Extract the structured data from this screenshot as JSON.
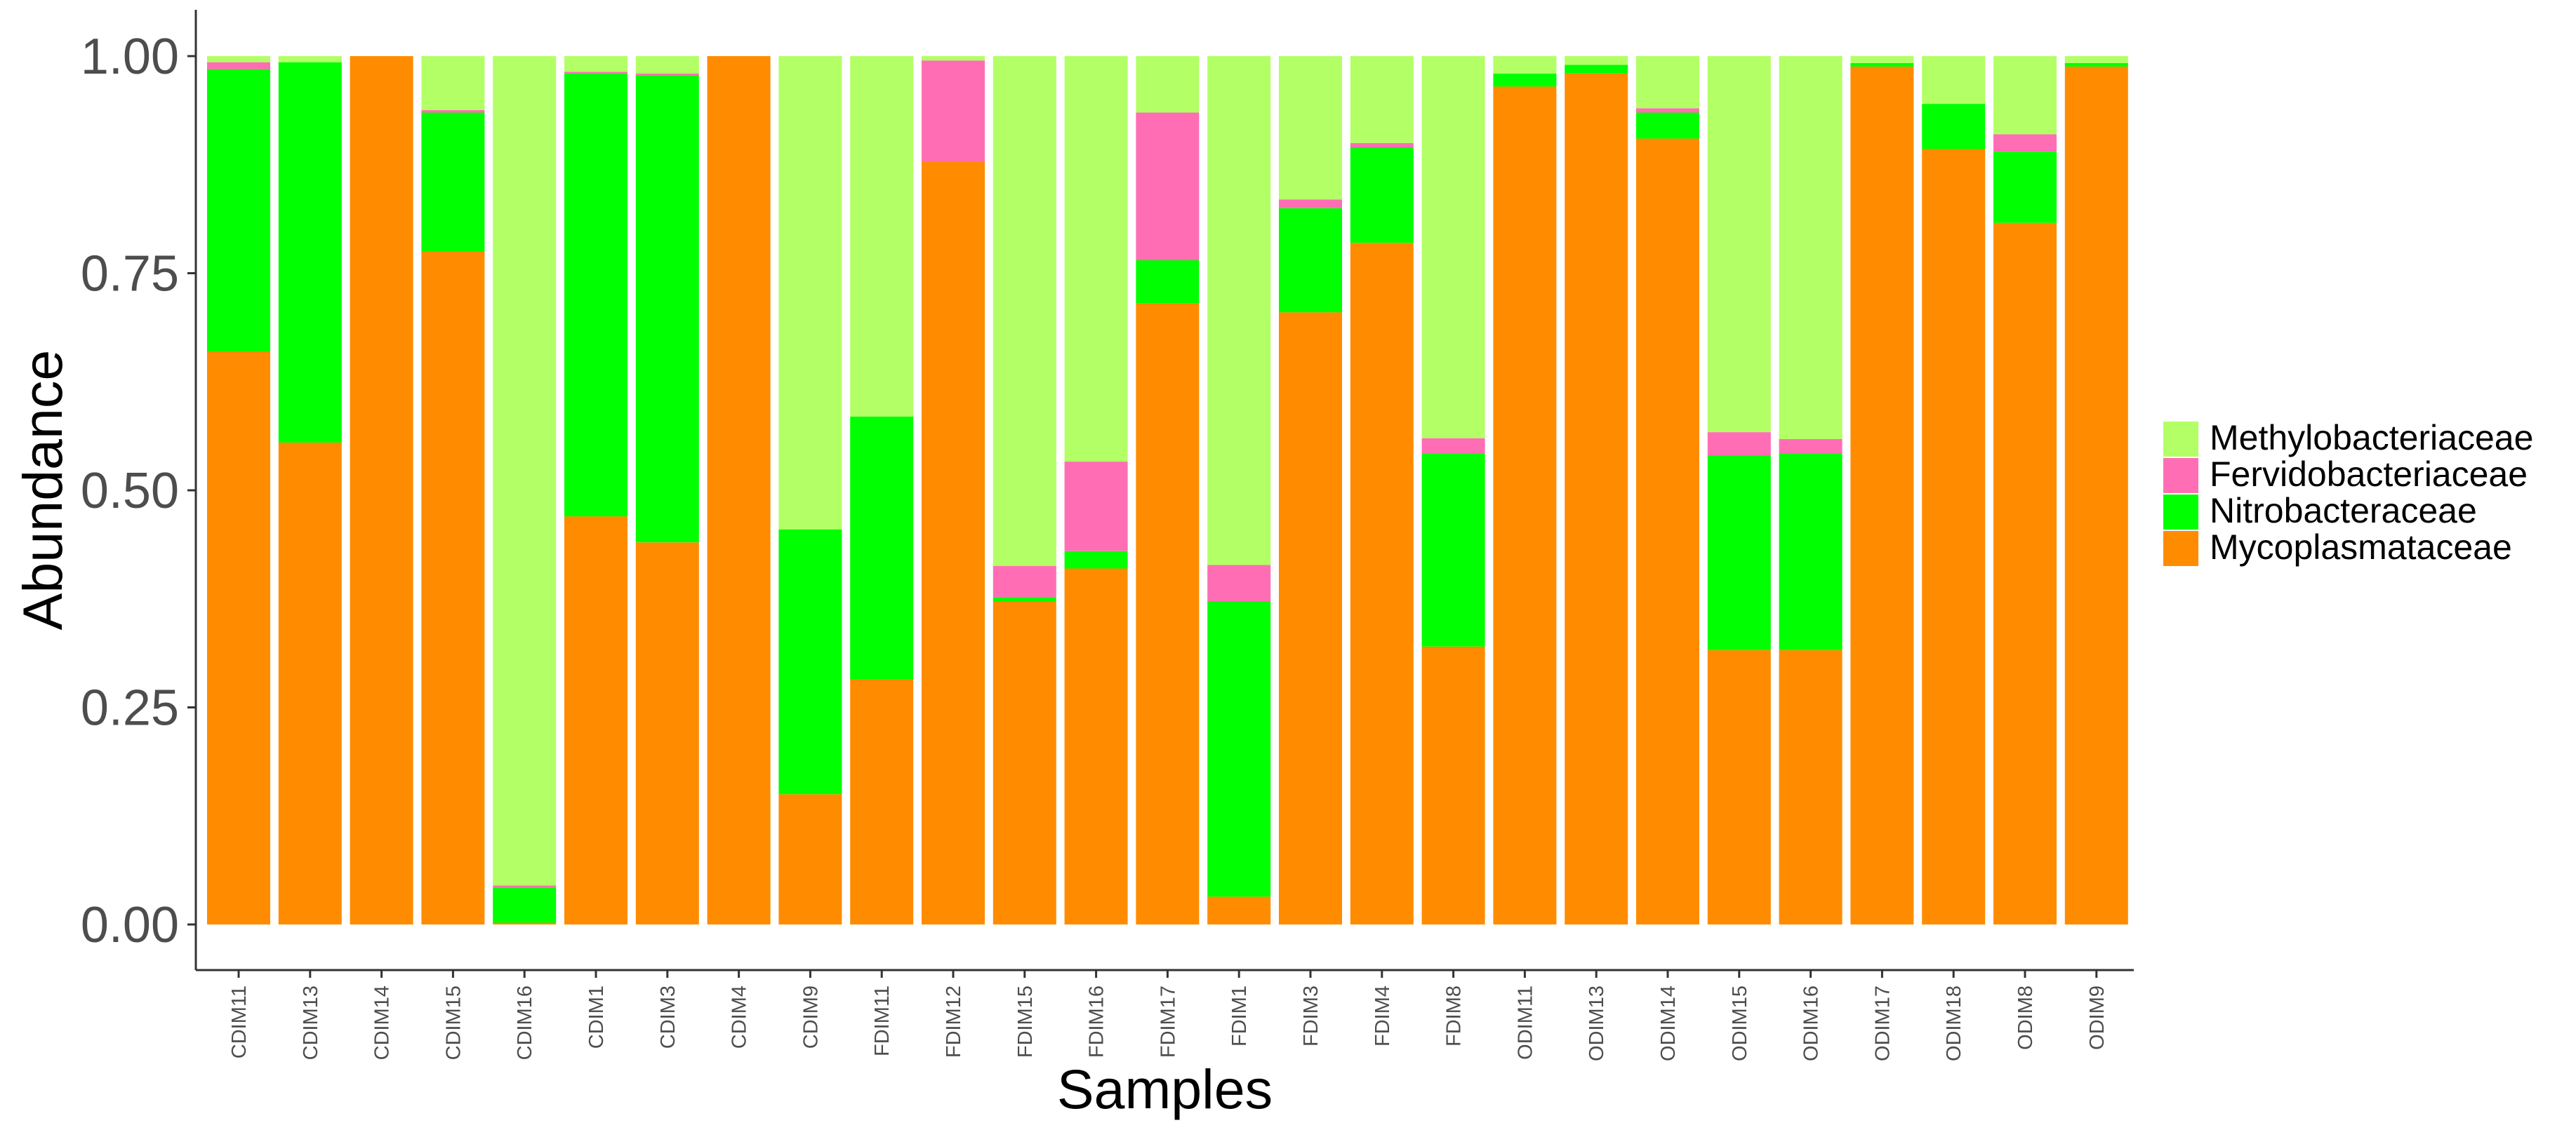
{
  "chart_data": {
    "type": "bar",
    "stacked": true,
    "title": "",
    "xlabel": "Samples",
    "ylabel": "Abundance",
    "ylim": [
      0,
      1.05
    ],
    "yticks": [
      0.0,
      0.25,
      0.5,
      0.75,
      1.0
    ],
    "ytick_labels": [
      "0.00",
      "0.25",
      "0.50",
      "0.75",
      "1.00"
    ],
    "grid": false,
    "legend_position": "right",
    "categories": [
      "CDIM11",
      "CDIM13",
      "CDIM14",
      "CDIM15",
      "CDIM16",
      "CDIM1",
      "CDIM3",
      "CDIM4",
      "CDIM9",
      "FDIM11",
      "FDIM12",
      "FDIM15",
      "FDIM16",
      "FDIM17",
      "FDIM1",
      "FDIM3",
      "FDIM4",
      "FDIM8",
      "ODIM11",
      "ODIM13",
      "ODIM14",
      "ODIM15",
      "ODIM16",
      "ODIM17",
      "ODIM18",
      "ODIM8",
      "ODIM9"
    ],
    "series": [
      {
        "name": "Mycoplasmataceae",
        "color": "#FF8C00",
        "values": [
          0.66,
          0.555,
          1.0,
          0.775,
          0.002,
          0.47,
          0.44,
          1.0,
          0.15,
          0.282,
          0.878,
          0.372,
          0.41,
          0.715,
          0.032,
          0.705,
          0.785,
          0.32,
          0.965,
          0.98,
          0.905,
          0.316,
          0.316,
          0.988,
          0.893,
          0.808,
          0.988
        ]
      },
      {
        "name": "Nitrobacteraceae",
        "color": "#00FF00",
        "values": [
          0.325,
          0.438,
          0.0,
          0.16,
          0.04,
          0.51,
          0.538,
          0.0,
          0.305,
          0.303,
          0.0,
          0.005,
          0.02,
          0.05,
          0.34,
          0.12,
          0.11,
          0.222,
          0.015,
          0.01,
          0.03,
          0.224,
          0.226,
          0.004,
          0.052,
          0.082,
          0.004
        ]
      },
      {
        "name": "Fervidobacteriaceae",
        "color": "#FF6EB4",
        "values": [
          0.008,
          0.0,
          0.0,
          0.003,
          0.003,
          0.002,
          0.002,
          0.0,
          0.0,
          0.0,
          0.117,
          0.036,
          0.103,
          0.17,
          0.042,
          0.01,
          0.005,
          0.018,
          0.0,
          0.0,
          0.005,
          0.027,
          0.017,
          0.0,
          0.0,
          0.02,
          0.0
        ]
      },
      {
        "name": "Methylobacteriaceae",
        "color": "#B3FF66",
        "values": [
          0.007,
          0.007,
          0.0,
          0.062,
          0.955,
          0.018,
          0.02,
          0.0,
          0.545,
          0.415,
          0.005,
          0.587,
          0.467,
          0.065,
          0.586,
          0.165,
          0.1,
          0.44,
          0.02,
          0.01,
          0.06,
          0.433,
          0.441,
          0.008,
          0.055,
          0.09,
          0.008
        ]
      }
    ],
    "legend_order": [
      "Methylobacteriaceae",
      "Fervidobacteriaceae",
      "Nitrobacteraceae",
      "Mycoplasmataceae"
    ]
  }
}
